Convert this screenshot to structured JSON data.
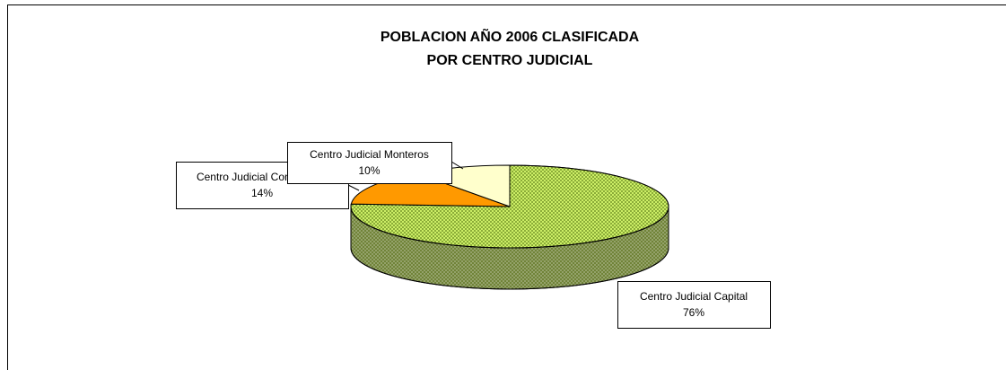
{
  "chart_data": {
    "type": "pie3d",
    "title": [
      "POBLACION AÑO 2006 CLASIFICADA",
      "POR CENTRO JUDICIAL"
    ],
    "categories": [
      "Centro Judicial Capital",
      "Centro Judicial Concepcion",
      "Centro Judicial Monteros"
    ],
    "values": [
      76,
      14,
      10
    ],
    "value_labels": [
      "76%",
      "14%",
      "10%"
    ],
    "colors": [
      "#ccee66",
      "#ff9900",
      "#ffffcc"
    ]
  }
}
